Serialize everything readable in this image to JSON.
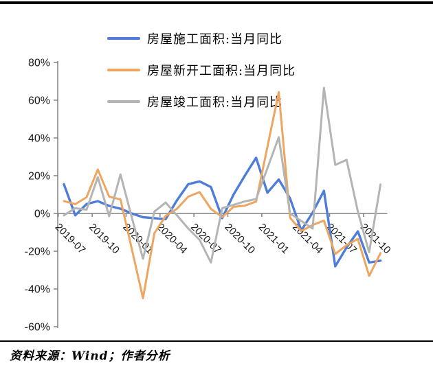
{
  "footer": {
    "source_note": "资料来源：Wind；作者分析"
  },
  "chart_data": {
    "type": "line",
    "x": [
      "2019-07",
      "2019-08",
      "2019-09",
      "2019-10",
      "2019-11",
      "2019-12",
      "2020-01",
      "2020-02",
      "2020-03",
      "2020-04",
      "2020-05",
      "2020-06",
      "2020-07",
      "2020-08",
      "2020-09",
      "2020-10",
      "2020-11",
      "2020-12",
      "2021-01",
      "2021-02",
      "2021-03",
      "2021-04",
      "2021-05",
      "2021-06",
      "2021-07",
      "2021-08",
      "2021-09",
      "2021-10",
      "2021-11"
    ],
    "series": [
      {
        "name": "房屋施工面积:当月同比",
        "color": "#4E7DD9",
        "values": [
          15.5,
          -1,
          5,
          6.5,
          4,
          2.5,
          0,
          -2,
          -2.5,
          -3,
          7,
          15.5,
          17,
          14,
          -2.5,
          10,
          20,
          29.5,
          11,
          18,
          8,
          -9,
          0.5,
          12,
          -28,
          -18,
          -9.5,
          -26,
          -25
        ]
      },
      {
        "name": "房屋新开工面积:当月同比",
        "color": "#EDA55F",
        "values": [
          6.6,
          4.9,
          8.6,
          23.3,
          8.9,
          7.4,
          -18.7,
          -44.9,
          -10.5,
          -1.3,
          2.5,
          8.9,
          11.3,
          2.4,
          -1.9,
          3.5,
          4.1,
          6.3,
          35.3,
          64.3,
          -2.2,
          -9.3,
          -6.1,
          -3.8,
          -21.5,
          -16.8,
          -13.5,
          -33.1,
          -21
        ]
      },
      {
        "name": "房屋竣工面积:当月同比",
        "color": "#B4B4B4",
        "values": [
          -1,
          2.8,
          2,
          19.2,
          -1.5,
          20.7,
          -2,
          -24,
          1,
          5.8,
          -1,
          -8,
          -14,
          -26,
          2.8,
          4.6,
          6.4,
          7.6,
          24,
          40.4,
          0,
          -4,
          -8,
          66.6,
          25.7,
          28.4,
          1,
          -20.6,
          15.4
        ]
      }
    ],
    "ylim": [
      -60,
      80
    ],
    "ytick_labels": [
      "80%",
      "60%",
      "40%",
      "20%",
      "0%",
      "-20%",
      "-40%",
      "-60%"
    ],
    "ytick_values": [
      80,
      60,
      40,
      20,
      0,
      -20,
      -40,
      -60
    ],
    "xtick_labels": [
      "2019-07",
      "2019-10",
      "2020-01",
      "2020-04",
      "2020-07",
      "2020-10",
      "2021-01",
      "2021-04",
      "2021-07",
      "2021-10"
    ],
    "grid": false,
    "legend_position": "top",
    "axis_color": "#808080",
    "label_color": "#1a1a1a"
  }
}
